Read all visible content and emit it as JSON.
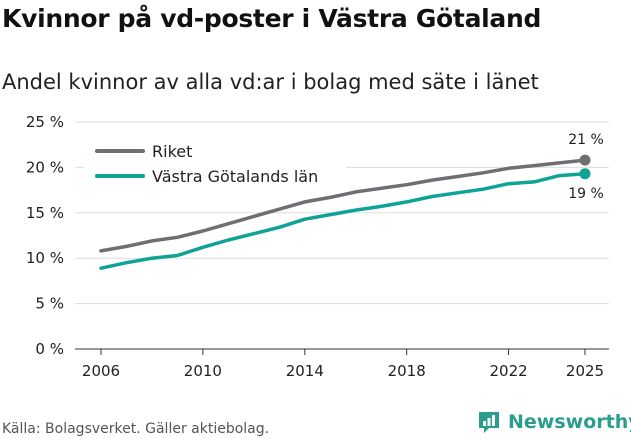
{
  "title": "Kvinnor på vd-poster i Västra Götaland",
  "subtitle": "Andel kvinnor av alla vd:ar i bolag med säte i länet",
  "source": "Källa: Bolagsverket. Gäller aktiebolag.",
  "brand": {
    "name": "Newsworthy",
    "color": "#2a9d8f"
  },
  "chart_data": {
    "type": "line",
    "x": [
      2006,
      2007,
      2008,
      2009,
      2010,
      2011,
      2012,
      2013,
      2014,
      2015,
      2016,
      2017,
      2018,
      2019,
      2020,
      2021,
      2022,
      2023,
      2024,
      2025
    ],
    "series": [
      {
        "name": "Riket",
        "color": "#6e6e73",
        "values": [
          10.8,
          11.3,
          11.9,
          12.3,
          13.0,
          13.8,
          14.6,
          15.4,
          16.2,
          16.7,
          17.3,
          17.7,
          18.1,
          18.6,
          19.0,
          19.4,
          19.9,
          20.2,
          20.5,
          20.8
        ],
        "end_label": "21 %"
      },
      {
        "name": "Västra Götalands län",
        "color": "#0fa396",
        "values": [
          8.9,
          9.5,
          10.0,
          10.3,
          11.2,
          12.0,
          12.7,
          13.4,
          14.3,
          14.8,
          15.3,
          15.7,
          16.2,
          16.8,
          17.2,
          17.6,
          18.2,
          18.4,
          19.1,
          19.3
        ],
        "end_label": "19 %"
      }
    ],
    "title": "Kvinnor på vd-poster i Västra Götaland",
    "xlabel": "",
    "ylabel": "",
    "ylim": [
      0,
      25
    ],
    "yticks": [
      0,
      5,
      10,
      15,
      20,
      25
    ],
    "ytick_labels": [
      "0 %",
      "5 %",
      "10 %",
      "15 %",
      "20 %",
      "25 %"
    ],
    "xticks": [
      2006,
      2010,
      2014,
      2018,
      2022,
      2025
    ],
    "xtick_labels": [
      "2006",
      "2010",
      "2014",
      "2018",
      "2022",
      "2025"
    ],
    "grid": true,
    "legend_position": "top-left"
  }
}
